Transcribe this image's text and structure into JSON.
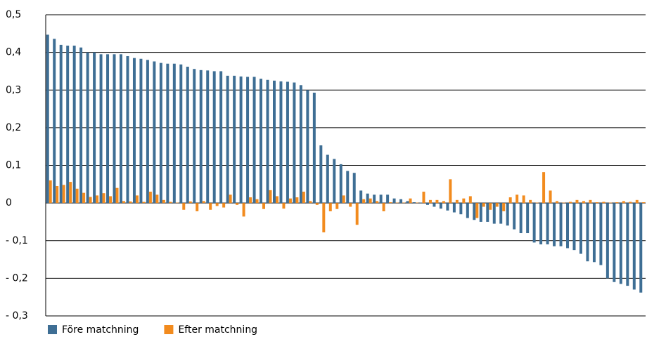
{
  "chart_data": {
    "type": "bar",
    "categories": [
      null,
      null,
      null,
      null,
      null,
      null,
      null,
      null,
      null,
      null,
      null,
      null,
      null,
      null,
      null,
      null,
      null,
      null,
      null,
      null,
      null,
      null,
      null,
      null,
      null,
      null,
      null,
      null,
      null,
      null,
      null,
      null,
      null,
      null,
      null,
      null,
      null,
      null,
      null,
      null,
      null,
      null,
      null,
      null,
      null,
      null,
      null,
      null,
      null,
      null,
      null,
      null,
      null,
      null,
      null,
      null,
      null,
      null,
      null,
      null,
      null,
      null,
      null,
      null,
      null,
      null,
      null,
      null,
      null,
      null,
      null,
      null,
      null,
      null,
      null,
      null,
      null,
      null,
      null,
      null,
      null,
      null,
      null,
      null,
      null,
      null,
      null,
      null,
      null,
      null
    ],
    "series": [
      {
        "name": "Före matchning",
        "color": "#3e6e94",
        "values": [
          0.447,
          0.436,
          0.42,
          0.418,
          0.418,
          0.413,
          0.4,
          0.4,
          0.395,
          0.395,
          0.395,
          0.395,
          0.39,
          0.385,
          0.383,
          0.38,
          0.376,
          0.372,
          0.37,
          0.37,
          0.368,
          0.362,
          0.356,
          0.353,
          0.352,
          0.35,
          0.35,
          0.338,
          0.338,
          0.336,
          0.335,
          0.335,
          0.33,
          0.327,
          0.325,
          0.323,
          0.322,
          0.32,
          0.313,
          0.3,
          0.293,
          0.153,
          0.128,
          0.117,
          0.103,
          0.085,
          0.08,
          0.033,
          0.025,
          0.022,
          0.022,
          0.022,
          0.012,
          0.01,
          0.005,
          0.002,
          0.001,
          -0.005,
          -0.01,
          -0.015,
          -0.02,
          -0.025,
          -0.03,
          -0.04,
          -0.045,
          -0.05,
          -0.05,
          -0.055,
          -0.055,
          -0.06,
          -0.07,
          -0.08,
          -0.08,
          -0.105,
          -0.11,
          -0.11,
          -0.115,
          -0.115,
          -0.12,
          -0.125,
          -0.135,
          -0.155,
          -0.157,
          -0.165,
          -0.2,
          -0.21,
          -0.215,
          -0.22,
          -0.23,
          -0.238
        ]
      },
      {
        "name": "Efter matchning",
        "color": "#f28b1e",
        "values": [
          0.06,
          0.045,
          0.048,
          0.056,
          0.038,
          0.027,
          0.016,
          0.02,
          0.026,
          0.018,
          0.04,
          0.005,
          0.004,
          0.02,
          0.003,
          0.03,
          0.022,
          0.008,
          0.003,
          0.001,
          -0.018,
          0.004,
          -0.022,
          0.005,
          -0.018,
          -0.008,
          -0.012,
          0.022,
          -0.005,
          -0.036,
          0.015,
          0.01,
          -0.016,
          0.034,
          0.018,
          -0.015,
          0.012,
          0.015,
          0.03,
          0.005,
          -0.005,
          -0.078,
          -0.022,
          -0.016,
          0.02,
          -0.01,
          -0.058,
          0.01,
          0.012,
          0.005,
          -0.022,
          0.002,
          0.001,
          0.001,
          0.012,
          0.001,
          0.03,
          0.008,
          0.008,
          0.005,
          0.063,
          0.008,
          0.012,
          0.018,
          -0.04,
          -0.01,
          -0.018,
          -0.01,
          -0.022,
          0.015,
          0.022,
          0.02,
          0.008,
          0.001,
          0.082,
          0.033,
          0.005,
          0.001,
          0.003,
          0.008,
          0.005,
          0.008,
          0.002,
          0.003,
          0.001,
          0.002,
          0.005,
          0.003,
          0.008,
          0.002
        ]
      }
    ],
    "ylim": [
      -0.3,
      0.5
    ],
    "yticks": [
      {
        "value": -0.3,
        "label": "- 0,3"
      },
      {
        "value": -0.2,
        "label": "- 0,2"
      },
      {
        "value": -0.1,
        "label": "- 0,1"
      },
      0,
      {
        "value": 0.1,
        "label": "0,1"
      },
      {
        "value": 0.2,
        "label": "0,2"
      },
      {
        "value": 0.3,
        "label": "0,3"
      },
      {
        "value": 0.4,
        "label": "0,4"
      },
      {
        "value": 0.5,
        "label": "0,5"
      }
    ],
    "grid": true,
    "legend": "bottom-left"
  }
}
